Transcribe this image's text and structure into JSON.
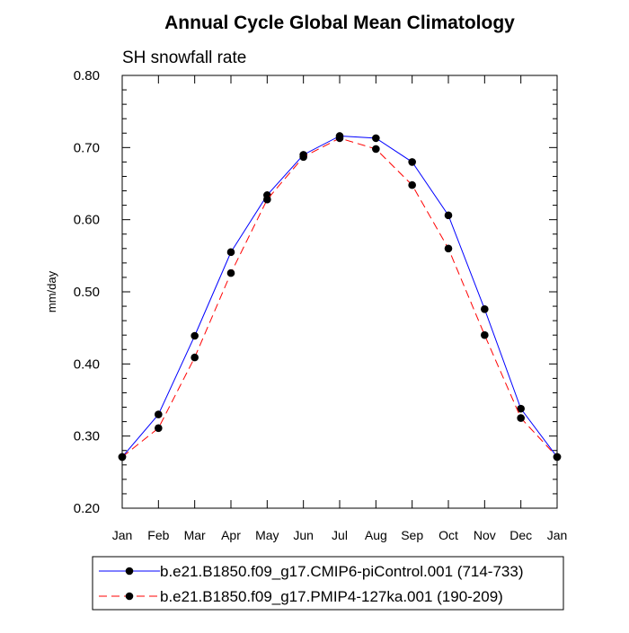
{
  "chart_data": {
    "type": "line",
    "title": "Annual Cycle Global Mean Climatology",
    "subtitle": "SH snowfall rate",
    "xlabel": "",
    "ylabel": "mm/day",
    "categories": [
      "Jan",
      "Feb",
      "Mar",
      "Apr",
      "May",
      "Jun",
      "Jul",
      "Aug",
      "Sep",
      "Oct",
      "Nov",
      "Dec",
      "Jan"
    ],
    "ylim": [
      0.2,
      0.8
    ],
    "yticks": [
      "0.20",
      "0.30",
      "0.40",
      "0.50",
      "0.60",
      "0.70",
      "0.80"
    ],
    "grid": false,
    "legend_position": "bottom",
    "series": [
      {
        "name": "b.e21.B1850.f09_g17.CMIP6-piControl.001 (714-733)",
        "values": [
          0.271,
          0.33,
          0.439,
          0.555,
          0.634,
          0.69,
          0.716,
          0.713,
          0.68,
          0.606,
          0.476,
          0.338,
          0.271
        ],
        "color": "#0000ff",
        "dash": "solid"
      },
      {
        "name": "b.e21.B1850.f09_g17.PMIP4-127ka.001 (190-209)",
        "values": [
          0.271,
          0.311,
          0.409,
          0.526,
          0.628,
          0.687,
          0.713,
          0.698,
          0.648,
          0.56,
          0.44,
          0.325,
          0.271
        ],
        "color": "#ff0000",
        "dash": "dashed"
      }
    ]
  }
}
